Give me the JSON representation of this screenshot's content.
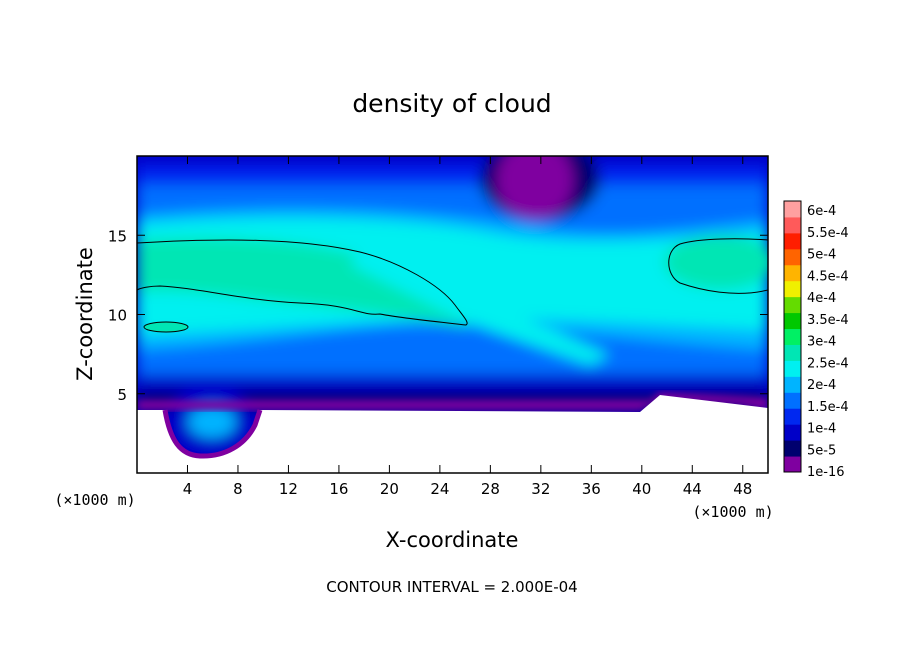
{
  "chart_data": {
    "type": "heatmap",
    "title": "density of cloud",
    "xlabel": "X-coordinate",
    "ylabel": "Z-coordinate",
    "x_unit": "(×1000 m)",
    "x_unit_right": "(×1000 m)",
    "xlim": [
      0,
      50
    ],
    "ylim": [
      0,
      20
    ],
    "x_ticks": [
      4,
      8,
      12,
      16,
      20,
      24,
      28,
      32,
      36,
      40,
      44,
      48
    ],
    "x_tick_labels": [
      "4",
      "8",
      "12",
      "16",
      "20",
      "24",
      "28",
      "32",
      "36",
      "40",
      "44",
      "48"
    ],
    "y_ticks": [
      5,
      10,
      15
    ],
    "y_tick_labels": [
      "5",
      "10",
      "15"
    ],
    "footer": "CONTOUR INTERVAL = 2.000E-04",
    "colorbar": {
      "labels": [
        "1e-16",
        "5e-5",
        "1e-4",
        "1.5e-4",
        "2e-4",
        "2.5e-4",
        "3e-4",
        "3.5e-4",
        "4e-4",
        "4.5e-4",
        "5e-4",
        "5.5e-4",
        "6e-4"
      ],
      "colors": [
        "#7f00a0",
        "#00006e",
        "#0000c8",
        "#0028f0",
        "#0070ff",
        "#00b4ff",
        "#00f0f0",
        "#00e6b4",
        "#00f064",
        "#00c800",
        "#64dc00",
        "#f0f000",
        "#ffb400",
        "#ff6400",
        "#ff1e00",
        "#ff5a5a",
        "#ffa0a0"
      ],
      "level_values": [
        1e-16,
        5e-05,
        0.0001,
        0.00015,
        0.0002,
        0.00025,
        0.0003,
        0.00035,
        0.0004,
        0.00045,
        0.0005,
        0.00055,
        0.0006
      ]
    },
    "field_description_features": {
      "max_contour_level": 0.0002,
      "high_density_regions": [
        {
          "x": [
            0,
            26
          ],
          "z": [
            10.5,
            14.8
          ]
        },
        {
          "x": [
            42,
            50
          ],
          "z": [
            11.3,
            14.8
          ]
        },
        {
          "x": [
            0.5,
            4
          ],
          "z": [
            8.8,
            9.5
          ]
        }
      ],
      "minimum_region": {
        "x": [
          28,
          34
        ],
        "z": [
          16.5,
          20
        ]
      },
      "blank_below_terrain": true
    }
  }
}
